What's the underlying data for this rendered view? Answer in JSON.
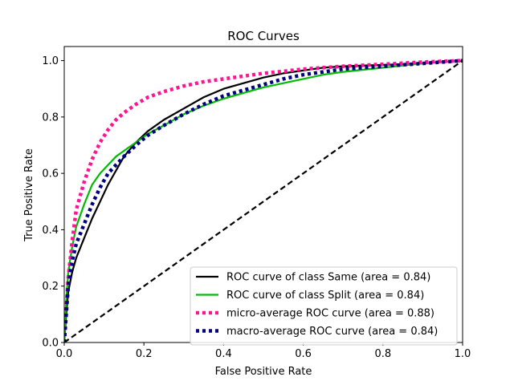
{
  "chart_data": {
    "type": "line",
    "title": "ROC Curves",
    "xlabel": "False Positive Rate",
    "ylabel": "True Positive Rate",
    "xlim": [
      0.0,
      1.0
    ],
    "ylim": [
      0.0,
      1.05
    ],
    "xticks": [
      0.0,
      0.2,
      0.4,
      0.6,
      0.8,
      1.0
    ],
    "xtick_labels": [
      "0.0",
      "0.2",
      "0.4",
      "0.6",
      "0.8",
      "1.0"
    ],
    "yticks": [
      0.0,
      0.2,
      0.4,
      0.6,
      0.8,
      1.0
    ],
    "ytick_labels": [
      "0.0",
      "0.2",
      "0.4",
      "0.6",
      "0.8",
      "1.0"
    ],
    "grid": false,
    "legend_position": "lower-right",
    "series": [
      {
        "name": "ROC curve of class Same (area = 0.84)",
        "color": "#000000",
        "style": "solid",
        "x": [
          0.0,
          0.005,
          0.01,
          0.02,
          0.03,
          0.05,
          0.07,
          0.09,
          0.11,
          0.13,
          0.15,
          0.18,
          0.21,
          0.25,
          0.3,
          0.35,
          0.4,
          0.45,
          0.5,
          0.55,
          0.6,
          0.65,
          0.7,
          0.8,
          0.9,
          1.0
        ],
        "y": [
          0.0,
          0.1,
          0.18,
          0.25,
          0.3,
          0.37,
          0.44,
          0.5,
          0.56,
          0.61,
          0.66,
          0.71,
          0.75,
          0.79,
          0.83,
          0.87,
          0.9,
          0.92,
          0.94,
          0.955,
          0.965,
          0.975,
          0.98,
          0.985,
          0.99,
          1.0
        ]
      },
      {
        "name": "ROC curve of class Split (area = 0.84)",
        "color": "#00bb00",
        "style": "solid",
        "x": [
          0.0,
          0.005,
          0.01,
          0.02,
          0.03,
          0.05,
          0.07,
          0.09,
          0.11,
          0.13,
          0.15,
          0.18,
          0.21,
          0.25,
          0.3,
          0.35,
          0.4,
          0.45,
          0.5,
          0.55,
          0.6,
          0.65,
          0.7,
          0.8,
          0.9,
          1.0
        ],
        "y": [
          0.0,
          0.15,
          0.25,
          0.34,
          0.41,
          0.49,
          0.56,
          0.6,
          0.63,
          0.66,
          0.68,
          0.71,
          0.74,
          0.77,
          0.81,
          0.84,
          0.865,
          0.885,
          0.905,
          0.92,
          0.935,
          0.95,
          0.96,
          0.975,
          0.99,
          1.0
        ]
      },
      {
        "name": "micro-average ROC curve (area = 0.88)",
        "color": "#ff1493",
        "style": "dotted",
        "x": [
          0.0,
          0.005,
          0.01,
          0.02,
          0.03,
          0.05,
          0.07,
          0.09,
          0.11,
          0.13,
          0.15,
          0.18,
          0.21,
          0.25,
          0.3,
          0.35,
          0.4,
          0.45,
          0.5,
          0.55,
          0.6,
          0.7,
          0.8,
          0.9,
          1.0
        ],
        "y": [
          0.0,
          0.12,
          0.23,
          0.36,
          0.47,
          0.57,
          0.65,
          0.71,
          0.755,
          0.79,
          0.815,
          0.845,
          0.87,
          0.89,
          0.91,
          0.925,
          0.935,
          0.945,
          0.955,
          0.962,
          0.97,
          0.98,
          0.987,
          0.995,
          1.0
        ]
      },
      {
        "name": "macro-average ROC curve (area = 0.84)",
        "color": "#000080",
        "style": "dotted",
        "x": [
          0.0,
          0.005,
          0.01,
          0.02,
          0.03,
          0.05,
          0.07,
          0.09,
          0.11,
          0.13,
          0.15,
          0.18,
          0.21,
          0.25,
          0.3,
          0.35,
          0.4,
          0.45,
          0.5,
          0.55,
          0.6,
          0.65,
          0.7,
          0.8,
          0.9,
          1.0
        ],
        "y": [
          0.0,
          0.1,
          0.2,
          0.29,
          0.35,
          0.42,
          0.49,
          0.55,
          0.6,
          0.63,
          0.66,
          0.7,
          0.735,
          0.77,
          0.81,
          0.845,
          0.875,
          0.895,
          0.915,
          0.935,
          0.95,
          0.96,
          0.97,
          0.98,
          0.99,
          1.0
        ]
      },
      {
        "name": "chance",
        "color": "#000000",
        "style": "dashed",
        "show_in_legend": false,
        "x": [
          0.0,
          1.0
        ],
        "y": [
          0.0,
          1.0
        ]
      }
    ]
  }
}
